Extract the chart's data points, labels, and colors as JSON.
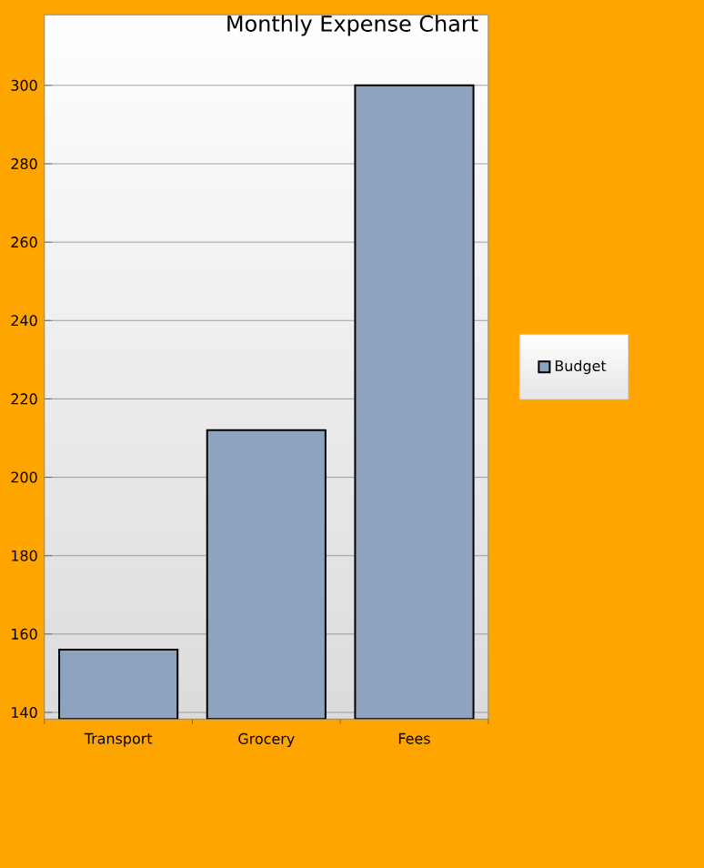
{
  "chart_data": {
    "type": "bar",
    "title": "Monthly Expense Chart",
    "categories": [
      "Transport",
      "Grocery",
      "Fees"
    ],
    "series": [
      {
        "name": "Budget",
        "color": "#8da3bf",
        "values": [
          156,
          212,
          300
        ]
      }
    ],
    "ylim": [
      138.3,
      318
    ],
    "yticks": [
      140,
      160,
      180,
      200,
      220,
      240,
      260,
      280,
      300
    ],
    "grid": "y",
    "legend": "right"
  }
}
